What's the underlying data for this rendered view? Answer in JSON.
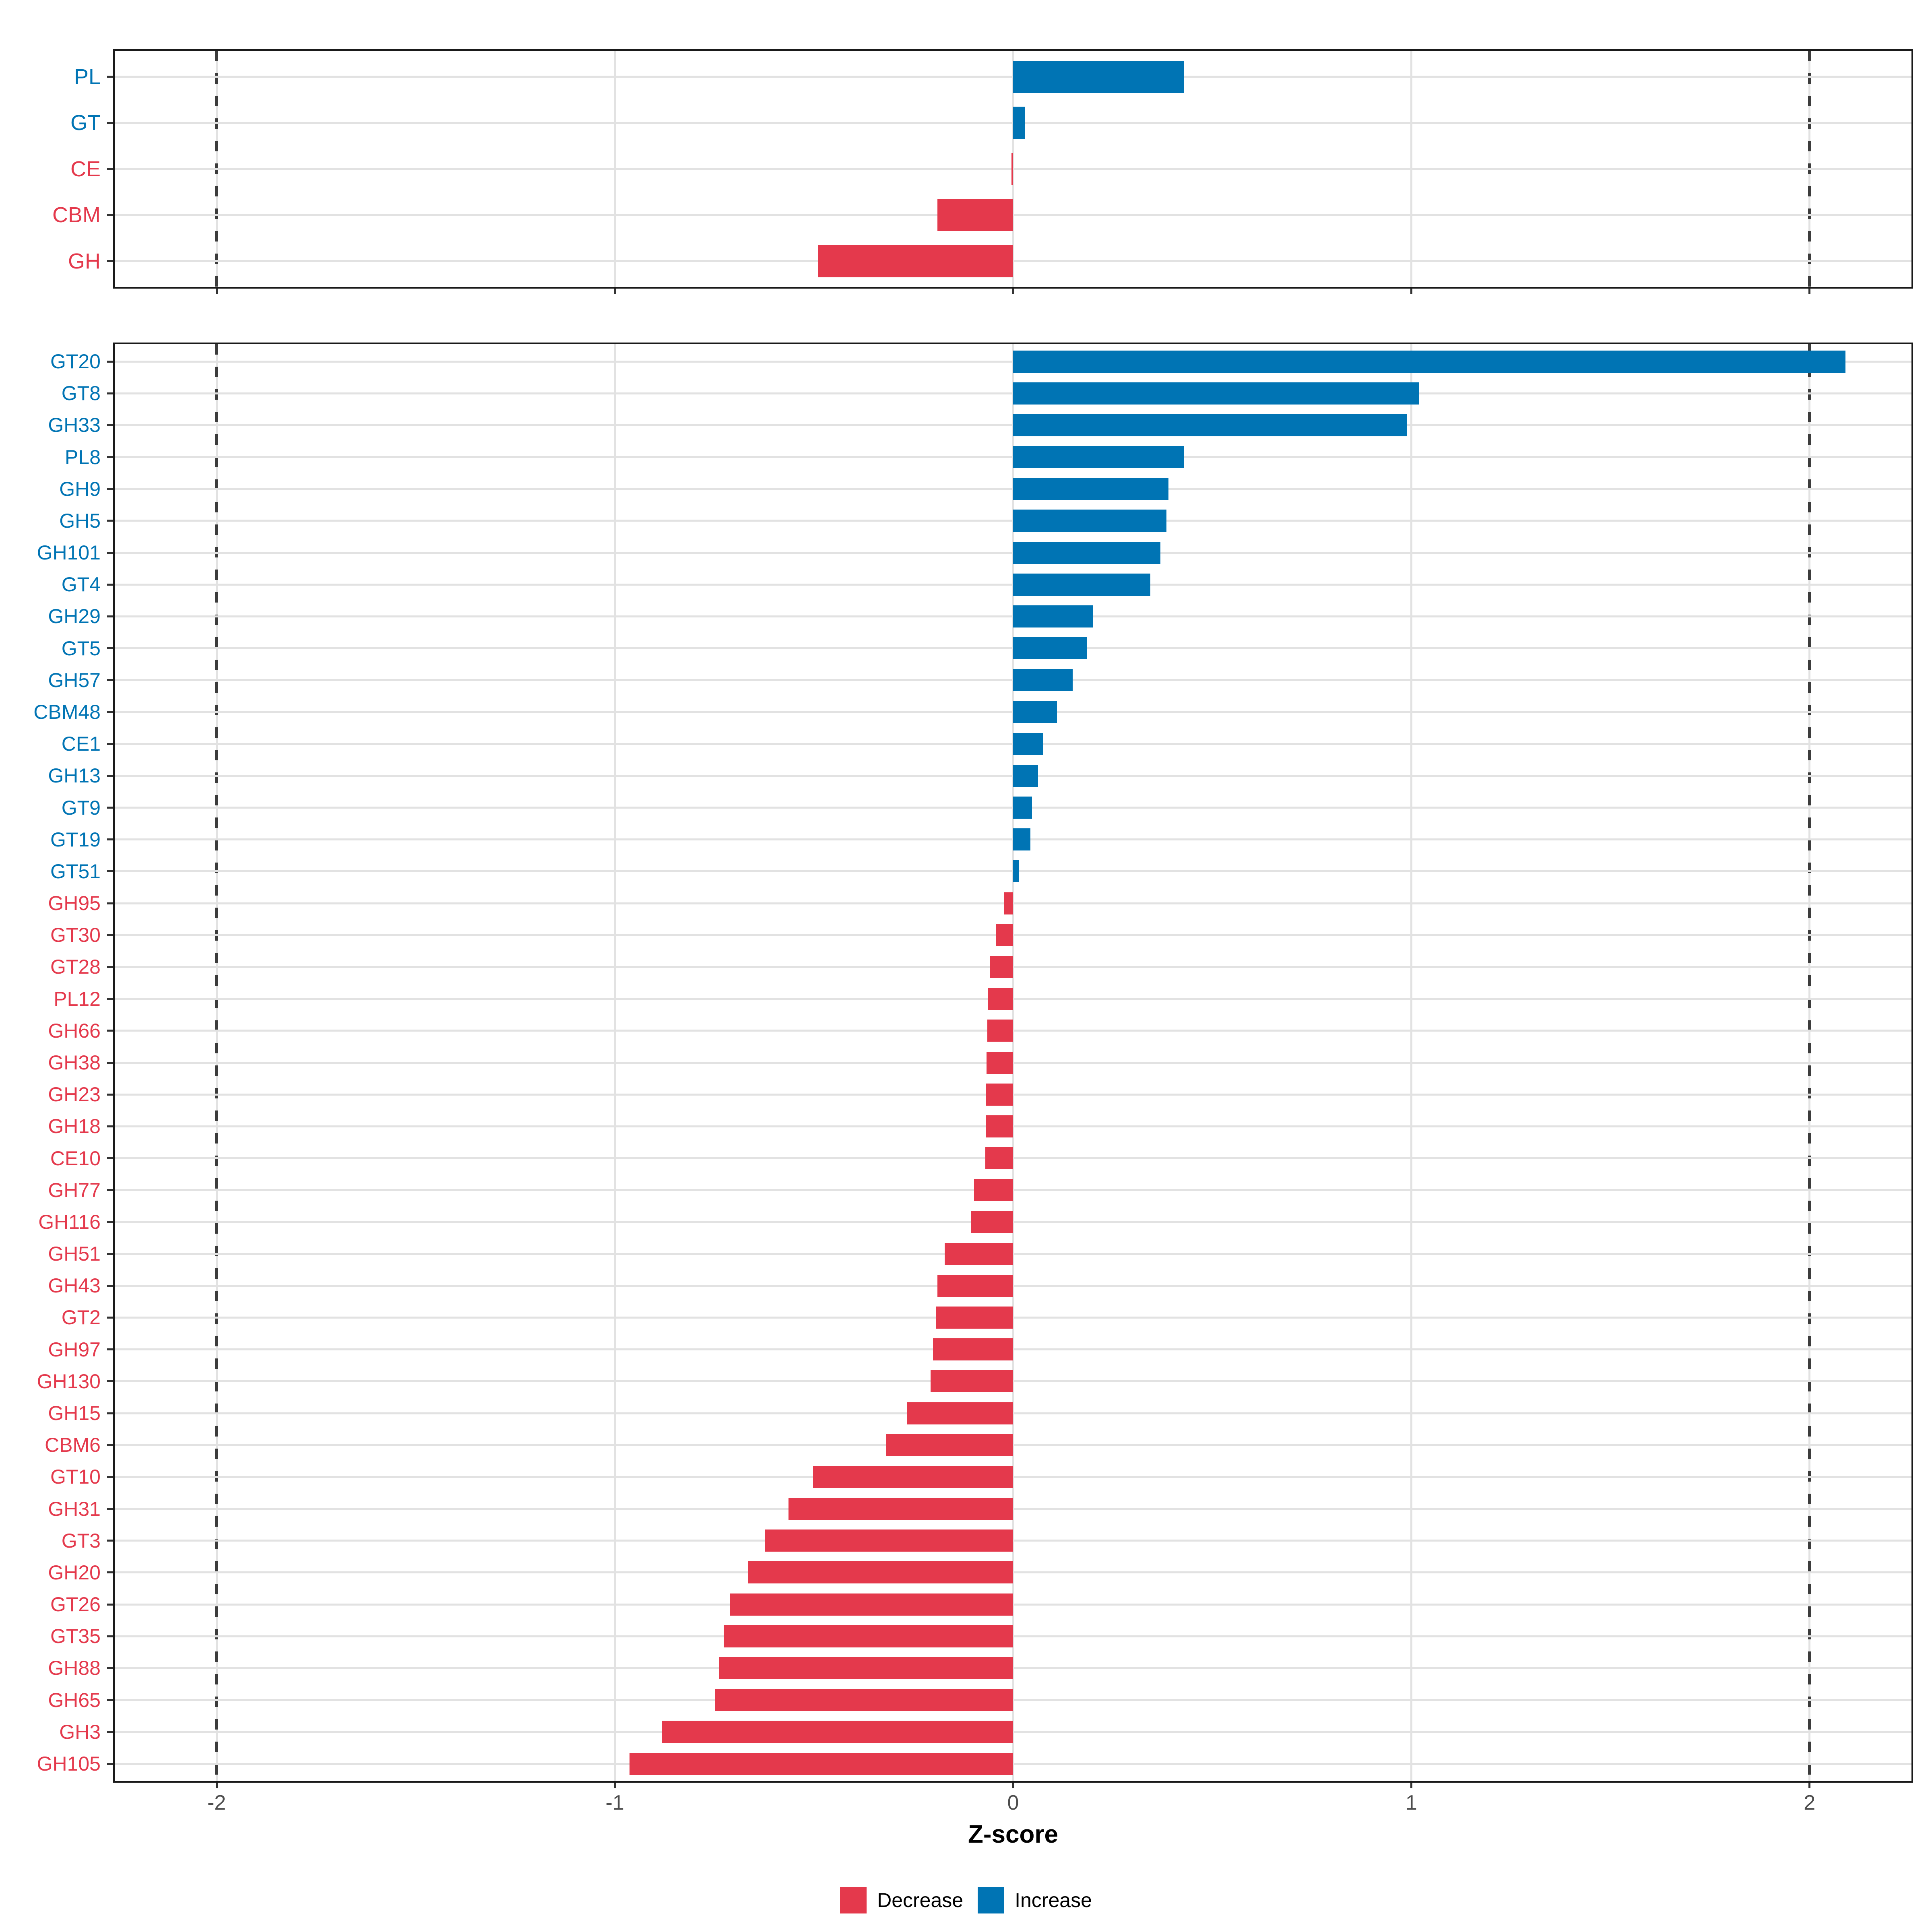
{
  "axis": {
    "title": "Z-score",
    "ticks": [
      -2,
      -1,
      0,
      1,
      2
    ],
    "tick_labels": [
      "-2",
      "-1",
      "0",
      "1",
      "2"
    ],
    "dashed_lines_at": [
      -2,
      2
    ],
    "xlim": [
      -2.26,
      2.26
    ]
  },
  "colors": {
    "increase": "#0074b4",
    "decrease": "#e4394c",
    "grid": "#e2e2e2",
    "dash": "#3c3c3c",
    "tick": "#333333",
    "tick_label": "#4d4d4d",
    "panel_border": "#1a1a1a"
  },
  "legend": {
    "items": [
      {
        "label": "Decrease",
        "key": "decrease"
      },
      {
        "label": "Increase",
        "key": "increase"
      }
    ]
  },
  "chart_data": [
    {
      "panel": "cazyme-classes",
      "type": "bar",
      "orientation": "horizontal",
      "title": "",
      "xlabel": "Z-score",
      "xlim": [
        -2.26,
        2.26
      ],
      "x_ticks": [
        -2,
        -1,
        0,
        1,
        2
      ],
      "dashed_lines_at": [
        -2,
        2
      ],
      "grid": true,
      "categories": [
        "PL",
        "GT",
        "CE",
        "CBM",
        "GH"
      ],
      "values": [
        0.43,
        0.03,
        -0.004,
        -0.19,
        -0.49
      ],
      "directions": [
        "increase",
        "increase",
        "decrease",
        "decrease",
        "decrease"
      ]
    },
    {
      "panel": "cazyme-families",
      "type": "bar",
      "orientation": "horizontal",
      "title": "",
      "xlabel": "Z-score",
      "xlim": [
        -2.26,
        2.26
      ],
      "x_ticks": [
        -2,
        -1,
        0,
        1,
        2
      ],
      "dashed_lines_at": [
        -2,
        2
      ],
      "grid": true,
      "categories": [
        "GT20",
        "GT8",
        "GH33",
        "PL8",
        "GH9",
        "GH5",
        "GH101",
        "GT4",
        "GH29",
        "GT5",
        "GH57",
        "CBM48",
        "CE1",
        "GH13",
        "GT9",
        "GT19",
        "GT51",
        "GH95",
        "GT30",
        "GT28",
        "PL12",
        "GH66",
        "GH38",
        "GH23",
        "GH18",
        "CE10",
        "GH77",
        "GH116",
        "GH51",
        "GH43",
        "GT2",
        "GH97",
        "GH130",
        "GH15",
        "CBM6",
        "GT10",
        "GH31",
        "GT3",
        "GH20",
        "GT26",
        "GT35",
        "GH88",
        "GH65",
        "GH3",
        "GH105"
      ],
      "values": [
        2.09,
        1.02,
        0.99,
        0.43,
        0.39,
        0.385,
        0.37,
        0.345,
        0.2,
        0.185,
        0.15,
        0.11,
        0.075,
        0.063,
        0.048,
        0.043,
        0.014,
        -0.022,
        -0.043,
        -0.058,
        -0.063,
        -0.065,
        -0.067,
        -0.068,
        -0.069,
        -0.07,
        -0.098,
        -0.106,
        -0.172,
        -0.19,
        -0.193,
        -0.201,
        -0.207,
        -0.267,
        -0.319,
        -0.502,
        -0.564,
        -0.623,
        -0.666,
        -0.711,
        -0.727,
        -0.738,
        -0.748,
        -0.881,
        -0.963
      ],
      "directions": [
        "increase",
        "increase",
        "increase",
        "increase",
        "increase",
        "increase",
        "increase",
        "increase",
        "increase",
        "increase",
        "increase",
        "increase",
        "increase",
        "increase",
        "increase",
        "increase",
        "increase",
        "decrease",
        "decrease",
        "decrease",
        "decrease",
        "decrease",
        "decrease",
        "decrease",
        "decrease",
        "decrease",
        "decrease",
        "decrease",
        "decrease",
        "decrease",
        "decrease",
        "decrease",
        "decrease",
        "decrease",
        "decrease",
        "decrease",
        "decrease",
        "decrease",
        "decrease",
        "decrease",
        "decrease",
        "decrease",
        "decrease",
        "decrease",
        "decrease"
      ]
    }
  ]
}
